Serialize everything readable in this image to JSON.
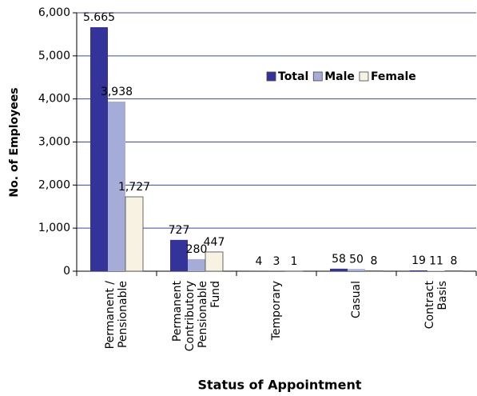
{
  "chart_data": {
    "type": "bar",
    "y_label": "No. of Employees",
    "x_label": "Status of Appointment",
    "categories": [
      [
        "Permanent /",
        "Pensionable"
      ],
      [
        "Permanent",
        "Contributory",
        "Pensionable",
        "Fund"
      ],
      [
        "Temporary"
      ],
      [
        "Casual"
      ],
      [
        "Contract",
        "Basis"
      ]
    ],
    "series": [
      {
        "name": "Total",
        "color": "#333399",
        "values": [
          5665,
          727,
          4,
          58,
          19
        ],
        "value_labels": [
          "5.665",
          "727",
          "4",
          "58",
          "19"
        ]
      },
      {
        "name": "Male",
        "color": "#a6acd8",
        "values": [
          3938,
          280,
          3,
          50,
          11
        ],
        "value_labels": [
          "3,938",
          "280",
          "3",
          "50",
          "11"
        ]
      },
      {
        "name": "Female",
        "color": "#f7f2e2",
        "values": [
          1727,
          447,
          1,
          8,
          8
        ],
        "value_labels": [
          "1,727",
          "447",
          "1",
          "8",
          "8"
        ]
      }
    ],
    "ylim": [
      0,
      6000
    ],
    "yticks": [
      0,
      {
        "value": 1000,
        "label": "1,000"
      },
      {
        "value": 2000,
        "label": "2,000"
      },
      {
        "value": 3000,
        "label": "3,000"
      },
      {
        "value": 4000,
        "label": "4,000"
      },
      {
        "value": 5000,
        "label": "5,000"
      },
      {
        "value": 6000,
        "label": "6,000"
      }
    ],
    "grid": true,
    "legend": "upper right"
  }
}
